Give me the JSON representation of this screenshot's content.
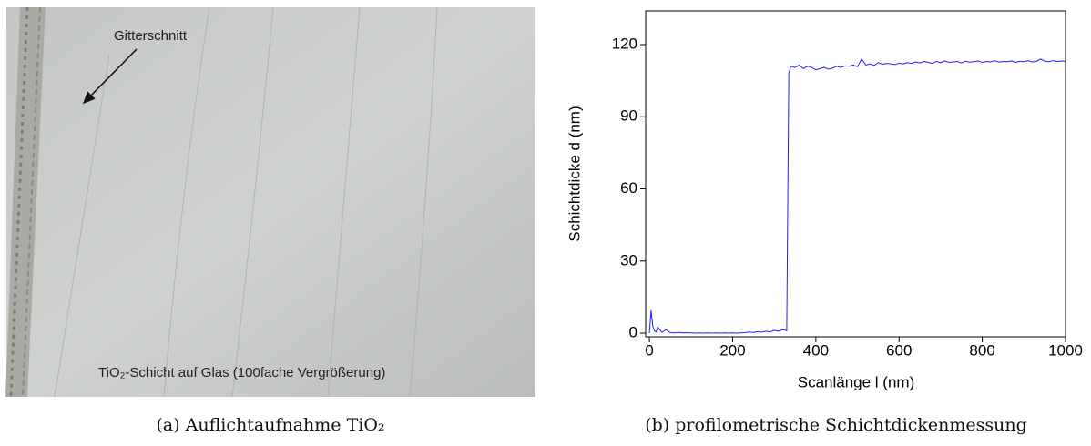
{
  "figure_a": {
    "annotation": "Gitterschnitt",
    "label": "TiO₂-Schicht auf Glas (100fache Vergrößerung)",
    "caption": "(a) Auflichtaufnahme TiO₂"
  },
  "figure_b": {
    "caption": "(b) profilometrische Schichtdickenmessung"
  },
  "chart_data": {
    "type": "line",
    "xlabel": "Scanlänge l (nm)",
    "ylabel": "Schichtdicke d (nm)",
    "color": "#1f1fff",
    "xlim": [
      -9,
      1000
    ],
    "ylim": [
      -1.5,
      134
    ],
    "xticks": [
      0,
      200,
      400,
      600,
      800,
      1000
    ],
    "yticks": [
      0,
      30,
      60,
      90,
      120
    ],
    "x": [
      0,
      4,
      8,
      12,
      16,
      20,
      30,
      40,
      50,
      60,
      70,
      80,
      90,
      100,
      110,
      120,
      130,
      140,
      150,
      160,
      170,
      180,
      190,
      200,
      210,
      220,
      230,
      240,
      250,
      260,
      270,
      280,
      290,
      300,
      310,
      320,
      330,
      335,
      340,
      350,
      360,
      370,
      380,
      390,
      400,
      410,
      420,
      430,
      440,
      450,
      460,
      470,
      480,
      490,
      500,
      510,
      520,
      530,
      540,
      550,
      560,
      570,
      580,
      590,
      600,
      610,
      620,
      630,
      640,
      650,
      660,
      670,
      680,
      690,
      700,
      710,
      720,
      730,
      740,
      750,
      760,
      770,
      780,
      790,
      800,
      810,
      820,
      830,
      840,
      850,
      860,
      870,
      880,
      890,
      900,
      910,
      920,
      930,
      940,
      950,
      960,
      970,
      980,
      990,
      1000
    ],
    "values": [
      0,
      9.5,
      3,
      1,
      0.5,
      2.5,
      0.3,
      1.5,
      0.2,
      0.1,
      0.3,
      0.1,
      0.2,
      0.1,
      0,
      0.1,
      0,
      0.1,
      0,
      0.1,
      0,
      0.1,
      0,
      0.1,
      0,
      0.1,
      0.2,
      0.5,
      0.3,
      0.6,
      0.4,
      0.8,
      0.5,
      1.2,
      0.8,
      1.5,
      1.0,
      108,
      111,
      110.5,
      111.5,
      110,
      111,
      110.5,
      109.5,
      110,
      110.5,
      109.8,
      110.2,
      111,
      110.5,
      111.2,
      111,
      111.5,
      110.8,
      114,
      111.5,
      112,
      111.3,
      112.5,
      111.8,
      112.2,
      112,
      111.7,
      112.3,
      112,
      112.5,
      112.2,
      112.8,
      112.4,
      113,
      112.6,
      112.2,
      113,
      112.5,
      113.2,
      112.6,
      112.8,
      113,
      112.4,
      113.1,
      112.7,
      112.9,
      113.2,
      112.6,
      113,
      112.8,
      113.3,
      112.7,
      113,
      112.9,
      113.2,
      112.6,
      113.1,
      112.9,
      113.3,
      112.8,
      113,
      114,
      113.1,
      112.9,
      113.3,
      113,
      113.2,
      113
    ]
  }
}
